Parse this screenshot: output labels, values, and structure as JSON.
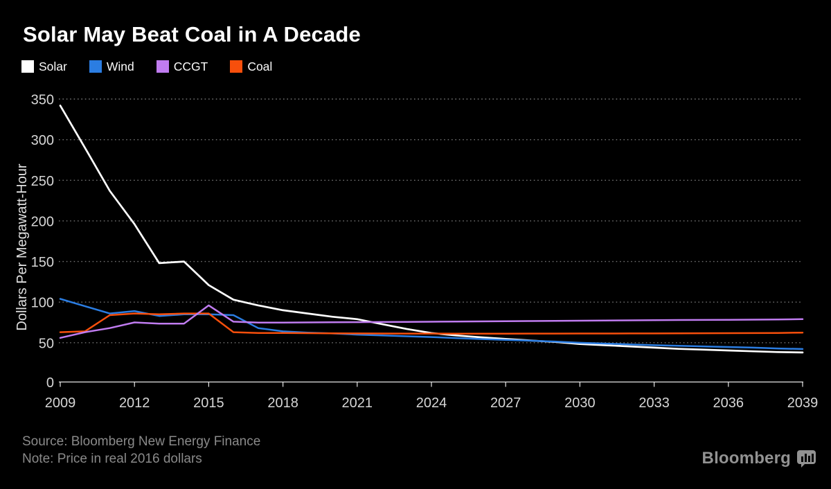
{
  "page": {
    "background": "#000000"
  },
  "header": {
    "title": "Solar May Beat Coal in A Decade"
  },
  "legend": {
    "items": [
      {
        "label": "Solar",
        "color": "#ffffff"
      },
      {
        "label": "Wind",
        "color": "#2b7de2"
      },
      {
        "label": "CCGT",
        "color": "#c07cf0"
      },
      {
        "label": "Coal",
        "color": "#f74f0c"
      }
    ]
  },
  "footer": {
    "source": "Source: Bloomberg New Energy Finance",
    "note": "Note: Price in real 2016 dollars",
    "brand": "Bloomberg",
    "brand_icon": "bloomberg-chart-bubble-icon"
  },
  "chart_data": {
    "type": "line",
    "title": "Solar May Beat Coal in A Decade",
    "xlabel": "",
    "ylabel": "Dollars Per Megawatt-Hour",
    "ylim": [
      0,
      350
    ],
    "y_ticks": [
      0,
      50,
      100,
      150,
      200,
      250,
      300,
      350
    ],
    "x_tick_labels": [
      "2009",
      "2012",
      "2015",
      "2018",
      "2021",
      "2024",
      "2027",
      "2030",
      "2033",
      "2036",
      "2039"
    ],
    "grid": "horizontal-dotted",
    "legend_position": "top-left",
    "units": "dollars per megawatt-hour, real 2016 dollars",
    "x": [
      2009,
      2010,
      2011,
      2012,
      2013,
      2014,
      2015,
      2016,
      2017,
      2018,
      2019,
      2020,
      2021,
      2022,
      2023,
      2024,
      2025,
      2026,
      2027,
      2028,
      2029,
      2030,
      2031,
      2032,
      2033,
      2034,
      2035,
      2036,
      2037,
      2038,
      2039
    ],
    "series": [
      {
        "name": "Solar",
        "color": "#ffffff",
        "width": 2.7,
        "z": 1,
        "values": [
          342,
          290,
          237,
          196,
          148,
          150,
          121,
          103,
          96,
          90,
          86,
          82,
          79,
          73,
          67,
          62,
          59,
          56.7,
          54.7,
          52.8,
          51,
          48.5,
          47,
          45.5,
          44,
          42.5,
          41.5,
          40.5,
          39.5,
          38.5,
          38
        ]
      },
      {
        "name": "Wind",
        "color": "#2b7de2",
        "width": 2.5,
        "z": 2,
        "values": [
          104,
          95,
          86,
          89,
          83,
          85,
          85,
          84,
          68,
          64,
          62.5,
          61.5,
          60,
          59,
          58,
          57,
          55.8,
          54.6,
          53.5,
          52.5,
          51.5,
          50,
          49,
          48,
          47,
          46.2,
          45.5,
          44.8,
          44,
          43,
          42.3
        ]
      },
      {
        "name": "CCGT",
        "color": "#c07cf0",
        "width": 2.5,
        "z": 4,
        "values": [
          56,
          63,
          68,
          75,
          73.5,
          73.5,
          96,
          76,
          74.8,
          74.8,
          75,
          75.2,
          75.4,
          75.5,
          75.7,
          75.9,
          76.1,
          76.3,
          76.5,
          76.7,
          76.9,
          77.2,
          77.4,
          77.6,
          77.8,
          78,
          78.1,
          78.2,
          78.4,
          78.7,
          79
        ]
      },
      {
        "name": "Coal",
        "color": "#f74f0c",
        "width": 2.5,
        "z": 3,
        "values": [
          63,
          64,
          84,
          86,
          85,
          86,
          86,
          63,
          62,
          62,
          61.8,
          61.6,
          61.5,
          61.4,
          61.3,
          61.3,
          61.2,
          61.2,
          61.2,
          61.3,
          61.3,
          61.4,
          61.4,
          61.5,
          61.5,
          61.6,
          61.7,
          61.8,
          61.9,
          62.1,
          62.5
        ]
      }
    ]
  }
}
